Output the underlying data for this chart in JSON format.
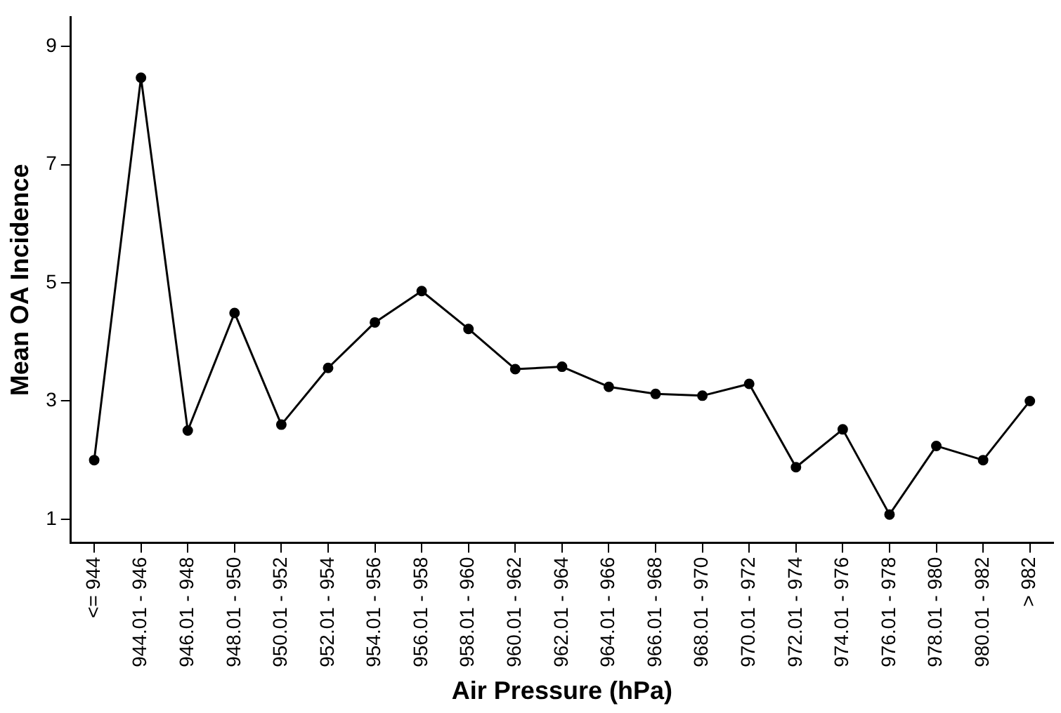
{
  "chart_data": {
    "type": "line",
    "xlabel": "Air Pressure (hPa)",
    "ylabel": "Mean OA Incidence",
    "categories": [
      "<= 944",
      "944.01 - 946",
      "946.01 - 948",
      "948.01 - 950",
      "950.01 - 952",
      "952.01 - 954",
      "954.01 - 956",
      "956.01 - 958",
      "958.01 - 960",
      "960.01 - 962",
      "962.01 - 964",
      "964.01 - 966",
      "966.01 - 968",
      "968.01 - 970",
      "970.01 - 972",
      "972.01 - 974",
      "974.01 - 976",
      "976.01 - 978",
      "978.01 - 980",
      "980.01 - 982",
      "> 982"
    ],
    "series": [
      {
        "color": "#000000",
        "values": [
          2.0,
          8.47,
          2.5,
          4.49,
          2.6,
          3.56,
          4.33,
          4.86,
          4.22,
          3.54,
          3.58,
          3.24,
          3.12,
          3.09,
          3.29,
          1.88,
          2.52,
          1.08,
          2.24,
          2.0,
          3.0
        ]
      }
    ],
    "ylim": [
      0.6,
      9.5
    ],
    "yticks": [
      1,
      3,
      5,
      7,
      9
    ],
    "grid": false,
    "legend": false,
    "marker": "circle",
    "line_style": "solid"
  }
}
